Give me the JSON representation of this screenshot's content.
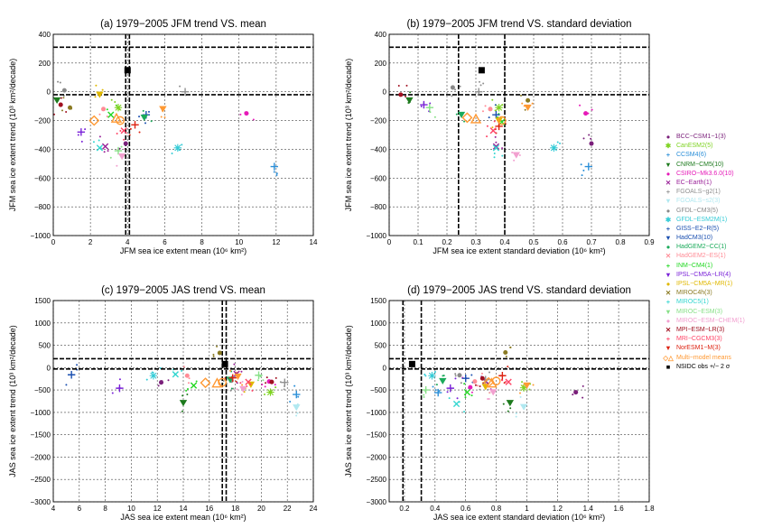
{
  "figure": {
    "model_colors": [
      "#7a1f7a",
      "#7ed321",
      "#2b8fd8",
      "#1d7a1d",
      "#e619b8",
      "#9a2298",
      "#909090",
      "#b0e8f0",
      "#888888",
      "#33cbd6",
      "#1a4fb0",
      "#1aaa5a",
      "#ff8c96",
      "#22d822",
      "#7a22d8",
      "#e0b800",
      "#8a7a22",
      "#33d6d0",
      "#88e088",
      "#f2a0d0",
      "#a01020",
      "#ff4466",
      "#dd2211",
      "#ff9933",
      "#000000"
    ]
  },
  "legend": {
    "items": [
      {
        "label": "BCC−CSM1−1(3)",
        "color": "#7a1f7a",
        "icon": "dot-icon"
      },
      {
        "label": "CanESM2(5)",
        "color": "#7ed321",
        "icon": "asterisk-icon"
      },
      {
        "label": "CCSM4(6)",
        "color": "#2b8fd8",
        "icon": "plus-icon"
      },
      {
        "label": "CNRM−CM5(10)",
        "color": "#1d7a1d",
        "icon": "triangle-down-icon"
      },
      {
        "label": "CSIRO−Mk3.6.0(10)",
        "color": "#e619b8",
        "icon": "dot-icon"
      },
      {
        "label": "EC−Earth(1)",
        "color": "#9a2298",
        "icon": "cross-icon"
      },
      {
        "label": "FGOALS−g2(1)",
        "color": "#909090",
        "icon": "plus-icon"
      },
      {
        "label": "FGOALS−s2(3)",
        "color": "#b0e8f0",
        "icon": "triangle-down-icon"
      },
      {
        "label": "GFDL−CM3(5)",
        "color": "#888888",
        "icon": "dot-icon"
      },
      {
        "label": "GFDL−ESM2M(1)",
        "color": "#33cbd6",
        "icon": "asterisk-icon"
      },
      {
        "label": "GISS−E2−R(5)",
        "color": "#1a4fb0",
        "icon": "plus-icon"
      },
      {
        "label": "HadCM3(10)",
        "color": "#1a4fb0",
        "icon": "triangle-down-icon"
      },
      {
        "label": "HadGEM2−CC(1)",
        "color": "#1aaa5a",
        "icon": "dot-icon"
      },
      {
        "label": "HadGEM2−ES(1)",
        "color": "#ff8c96",
        "icon": "cross-icon"
      },
      {
        "label": "INM−CM4(1)",
        "color": "#22d822",
        "icon": "plus-icon"
      },
      {
        "label": "IPSL−CM5A−LR(4)",
        "color": "#7a22d8",
        "icon": "triangle-down-icon"
      },
      {
        "label": "IPSL−CM5A−MR(1)",
        "color": "#e0b800",
        "icon": "dot-icon"
      },
      {
        "label": "MIROC4h(3)",
        "color": "#8a7a22",
        "icon": "cross-icon"
      },
      {
        "label": "MIROC5(1)",
        "color": "#33d6d0",
        "icon": "plus-icon"
      },
      {
        "label": "MIROC−ESM(3)",
        "color": "#88e088",
        "icon": "triangle-down-icon"
      },
      {
        "label": "MIROC−ESM−CHEM(1)",
        "color": "#f2a0d0",
        "icon": "dot-icon"
      },
      {
        "label": "MPI−ESM−LR(3)",
        "color": "#a01020",
        "icon": "cross-icon"
      },
      {
        "label": "MRI−CGCM3(3)",
        "color": "#ff4466",
        "icon": "plus-icon"
      },
      {
        "label": "NorESM1−M(3)",
        "color": "#dd2211",
        "icon": "triangle-down-icon"
      },
      {
        "label": "Multi−model means",
        "color": "#ff9933",
        "icon": "open-circle-triangle-icon"
      },
      {
        "label": "NSIDC obs +/− 2 σ",
        "color": "#000000",
        "icon": "square-icon"
      }
    ]
  },
  "chart_data": [
    {
      "type": "scatter",
      "title": "(a) 1979−2005 JFM trend VS. mean",
      "xlabel": "JFM sea ice extent mean (10⁶ km²)",
      "ylabel": "JFM sea ice extent trend (10³ km²/decade)",
      "xlim": [
        0,
        14
      ],
      "ylim": [
        -1000,
        400
      ],
      "xticks": [
        0,
        2,
        4,
        6,
        8,
        10,
        12,
        14
      ],
      "yticks": [
        -1000,
        -800,
        -600,
        -400,
        -200,
        0,
        200,
        400
      ],
      "xtick_labels": [
        "0",
        "2",
        "4",
        "6",
        "8",
        "10",
        "12",
        "14"
      ],
      "ytick_labels": [
        "−1000",
        "−800",
        "−600",
        "−400",
        "−200",
        "0",
        "200",
        "400"
      ],
      "grid": true,
      "obs": {
        "x": 4.0,
        "y": 150,
        "x_lo": 3.9,
        "x_hi": 4.1,
        "y_lo": -20,
        "y_hi": 310
      },
      "ensemble_means": [
        {
          "m": 0,
          "x": 3.9,
          "y": -360
        },
        {
          "m": 1,
          "x": 3.5,
          "y": -110
        },
        {
          "m": 2,
          "x": 11.9,
          "y": -520
        },
        {
          "m": 3,
          "x": 0.2,
          "y": -60
        },
        {
          "m": 4,
          "x": 10.4,
          "y": -150
        },
        {
          "m": 5,
          "x": 2.8,
          "y": -380
        },
        {
          "m": 6,
          "x": 7.1,
          "y": 0
        },
        {
          "m": 8,
          "x": 0.6,
          "y": 10
        },
        {
          "m": 9,
          "x": 6.7,
          "y": -390
        },
        {
          "m": 10,
          "x": 5.0,
          "y": -160
        },
        {
          "m": 11,
          "x": 4.9,
          "y": -180
        },
        {
          "m": 12,
          "x": 2.7,
          "y": -120
        },
        {
          "m": 13,
          "x": 3.1,
          "y": -160
        },
        {
          "m": 14,
          "x": 1.5,
          "y": -280
        },
        {
          "m": 15,
          "x": 2.5,
          "y": -20
        },
        {
          "m": 16,
          "x": 0.9,
          "y": -110
        },
        {
          "m": 17,
          "x": 2.5,
          "y": -390
        },
        {
          "m": 18,
          "x": 3.5,
          "y": -410
        },
        {
          "m": 19,
          "x": 3.7,
          "y": -450
        },
        {
          "m": 20,
          "x": 0.4,
          "y": -90
        },
        {
          "m": 21,
          "x": 3.8,
          "y": -270
        },
        {
          "m": 22,
          "x": 4.4,
          "y": -230
        },
        {
          "m": 23,
          "x": 5.9,
          "y": -120
        }
      ],
      "multi_model_means": [
        {
          "x": 2.2,
          "y": -200
        },
        {
          "x": 3.4,
          "y": -185
        },
        {
          "x": 3.6,
          "y": -200
        }
      ]
    },
    {
      "type": "scatter",
      "title": "(b) 1979−2005 JFM trend VS. standard deviation",
      "xlabel": "JFM sea ice extent standard deviation (10⁶ km²)",
      "ylabel": "JFM sea ice extent trend (10³ km²/decade)",
      "xlim": [
        0,
        0.9
      ],
      "ylim": [
        -1000,
        400
      ],
      "xticks": [
        0,
        0.1,
        0.2,
        0.3,
        0.4,
        0.5,
        0.6,
        0.7,
        0.8,
        0.9
      ],
      "yticks": [
        -1000,
        -800,
        -600,
        -400,
        -200,
        0,
        200,
        400
      ],
      "xtick_labels": [
        "0",
        "0.1",
        "0.2",
        "0.3",
        "0.4",
        "0.5",
        "0.6",
        "0.7",
        "0.8",
        "0.9"
      ],
      "ytick_labels": [
        "−1000",
        "−800",
        "−600",
        "−400",
        "−200",
        "0",
        "200",
        "400"
      ],
      "grid": true,
      "obs": {
        "x": 0.32,
        "y": 150,
        "x_lo": 0.24,
        "x_hi": 0.4,
        "y_lo": -20,
        "y_hi": 310
      },
      "ensemble_means": [
        {
          "m": 0,
          "x": 0.7,
          "y": -360
        },
        {
          "m": 1,
          "x": 0.38,
          "y": -110
        },
        {
          "m": 2,
          "x": 0.69,
          "y": -520
        },
        {
          "m": 3,
          "x": 0.07,
          "y": -60
        },
        {
          "m": 4,
          "x": 0.68,
          "y": -150
        },
        {
          "m": 5,
          "x": 0.37,
          "y": -380
        },
        {
          "m": 6,
          "x": 0.31,
          "y": 0
        },
        {
          "m": 8,
          "x": 0.22,
          "y": 30
        },
        {
          "m": 9,
          "x": 0.57,
          "y": -390
        },
        {
          "m": 10,
          "x": 0.37,
          "y": -160
        },
        {
          "m": 11,
          "x": 0.25,
          "y": -160
        },
        {
          "m": 12,
          "x": 0.35,
          "y": -120
        },
        {
          "m": 13,
          "x": 0.39,
          "y": -210
        },
        {
          "m": 14,
          "x": 0.12,
          "y": -90
        },
        {
          "m": 15,
          "x": 0.38,
          "y": -200
        },
        {
          "m": 16,
          "x": 0.48,
          "y": -60
        },
        {
          "m": 17,
          "x": 0.37,
          "y": -390
        },
        {
          "m": 18,
          "x": 0.14,
          "y": -110
        },
        {
          "m": 19,
          "x": 0.44,
          "y": -440
        },
        {
          "m": 20,
          "x": 0.04,
          "y": -20
        },
        {
          "m": 21,
          "x": 0.36,
          "y": -270
        },
        {
          "m": 22,
          "x": 0.38,
          "y": -240
        },
        {
          "m": 23,
          "x": 0.48,
          "y": -110
        }
      ],
      "multi_model_means": [
        {
          "x": 0.27,
          "y": -180
        },
        {
          "x": 0.3,
          "y": -190
        },
        {
          "x": 0.39,
          "y": -200
        }
      ]
    },
    {
      "type": "scatter",
      "title": "(c) 1979−2005 JAS trend VS. mean",
      "xlabel": "JAS sea ice extent mean (10⁶ km²)",
      "ylabel": "JAS sea ice extent trend (10³ km²/decade)",
      "xlim": [
        4,
        24
      ],
      "ylim": [
        -3000,
        1500
      ],
      "xticks": [
        4,
        6,
        8,
        10,
        12,
        14,
        16,
        18,
        20,
        22,
        24
      ],
      "yticks": [
        -3000,
        -2500,
        -2000,
        -1500,
        -1000,
        -500,
        0,
        500,
        1000,
        1500
      ],
      "xtick_labels": [
        "4",
        "6",
        "8",
        "10",
        "12",
        "14",
        "16",
        "18",
        "20",
        "22",
        "24"
      ],
      "ytick_labels": [
        "−3000",
        "−2500",
        "−2000",
        "−1500",
        "−1000",
        "−500",
        "0",
        "500",
        "1000",
        "1500"
      ],
      "grid": true,
      "obs": {
        "x": 17.2,
        "y": 80,
        "x_lo": 17.0,
        "x_hi": 17.3,
        "y_lo": -30,
        "y_hi": 200
      },
      "ensemble_means": [
        {
          "m": 0,
          "x": 12.3,
          "y": -330
        },
        {
          "m": 1,
          "x": 20.7,
          "y": -550
        },
        {
          "m": 2,
          "x": 22.7,
          "y": -600
        },
        {
          "m": 3,
          "x": 14.0,
          "y": -790
        },
        {
          "m": 4,
          "x": 20.6,
          "y": -310
        },
        {
          "m": 5,
          "x": 18.1,
          "y": -140
        },
        {
          "m": 6,
          "x": 21.8,
          "y": -330
        },
        {
          "m": 7,
          "x": 22.7,
          "y": -890
        },
        {
          "m": 8,
          "x": 17.7,
          "y": -290
        },
        {
          "m": 9,
          "x": 11.7,
          "y": -180
        },
        {
          "m": 10,
          "x": 5.4,
          "y": -160
        },
        {
          "m": 11,
          "x": 17.6,
          "y": -270
        },
        {
          "m": 12,
          "x": 14.3,
          "y": -180
        },
        {
          "m": 13,
          "x": 14.8,
          "y": -400
        },
        {
          "m": 14,
          "x": 9.1,
          "y": -460
        },
        {
          "m": 15,
          "x": 19.2,
          "y": -380
        },
        {
          "m": 16,
          "x": 16.8,
          "y": 330
        },
        {
          "m": 17,
          "x": 13.4,
          "y": -150
        },
        {
          "m": 18,
          "x": 19.8,
          "y": -170
        },
        {
          "m": 19,
          "x": 18.6,
          "y": -480
        },
        {
          "m": 20,
          "x": 20.8,
          "y": -320
        },
        {
          "m": 21,
          "x": 19.0,
          "y": -320
        },
        {
          "m": 22,
          "x": 17.8,
          "y": -230
        },
        {
          "m": 23,
          "x": 18.2,
          "y": -200
        }
      ],
      "multi_model_means": [
        {
          "x": 15.7,
          "y": -340
        },
        {
          "x": 16.6,
          "y": -350
        },
        {
          "x": 17.0,
          "y": -330
        }
      ]
    },
    {
      "type": "scatter",
      "title": "(d) 1979−2005 JAS trend VS. standard deviation",
      "xlabel": "JAS sea ice extent standard deviation (10⁶ km²)",
      "ylabel": "JAS sea ice extent trend (10³ km²/decade)",
      "xlim": [
        0.1,
        1.8
      ],
      "ylim": [
        -3000,
        1500
      ],
      "xticks": [
        0.2,
        0.4,
        0.6,
        0.8,
        1.0,
        1.2,
        1.4,
        1.6,
        1.8
      ],
      "yticks": [
        -3000,
        -2500,
        -2000,
        -1500,
        -1000,
        -500,
        0,
        500,
        1000,
        1500
      ],
      "xtick_labels": [
        "0.2",
        "0.4",
        "0.6",
        "0.8",
        "1",
        "1.2",
        "1.4",
        "1.6",
        "1.8"
      ],
      "ytick_labels": [
        "−3000",
        "−2500",
        "−2000",
        "−1500",
        "−1000",
        "−500",
        "0",
        "500",
        "1000",
        "1500"
      ],
      "grid": true,
      "obs": {
        "x": 0.25,
        "y": 80,
        "x_lo": 0.19,
        "x_hi": 0.31,
        "y_lo": -30,
        "y_hi": 200
      },
      "ensemble_means": [
        {
          "m": 0,
          "x": 1.32,
          "y": -550
        },
        {
          "m": 1,
          "x": 0.98,
          "y": -450
        },
        {
          "m": 2,
          "x": 0.42,
          "y": -560
        },
        {
          "m": 3,
          "x": 0.89,
          "y": -790
        },
        {
          "m": 4,
          "x": 0.63,
          "y": -440
        },
        {
          "m": 5,
          "x": 0.73,
          "y": -300
        },
        {
          "m": 6,
          "x": 0.73,
          "y": -270
        },
        {
          "m": 7,
          "x": 0.98,
          "y": -880
        },
        {
          "m": 8,
          "x": 0.56,
          "y": -170
        },
        {
          "m": 9,
          "x": 0.38,
          "y": -180
        },
        {
          "m": 10,
          "x": 0.6,
          "y": -240
        },
        {
          "m": 11,
          "x": 0.45,
          "y": -300
        },
        {
          "m": 12,
          "x": 0.66,
          "y": -310
        },
        {
          "m": 13,
          "x": 0.61,
          "y": -550
        },
        {
          "m": 14,
          "x": 0.5,
          "y": -460
        },
        {
          "m": 15,
          "x": 0.73,
          "y": -430
        },
        {
          "m": 16,
          "x": 0.86,
          "y": 340
        },
        {
          "m": 17,
          "x": 0.54,
          "y": -810
        },
        {
          "m": 18,
          "x": 0.34,
          "y": -500
        },
        {
          "m": 19,
          "x": 0.78,
          "y": -550
        },
        {
          "m": 20,
          "x": 0.71,
          "y": -240
        },
        {
          "m": 21,
          "x": 0.88,
          "y": -320
        },
        {
          "m": 22,
          "x": 0.84,
          "y": -180
        },
        {
          "m": 23,
          "x": 1.0,
          "y": -400
        }
      ],
      "multi_model_means": [
        {
          "x": 0.75,
          "y": -330
        },
        {
          "x": 0.77,
          "y": -350
        },
        {
          "x": 0.8,
          "y": -300
        }
      ]
    }
  ]
}
